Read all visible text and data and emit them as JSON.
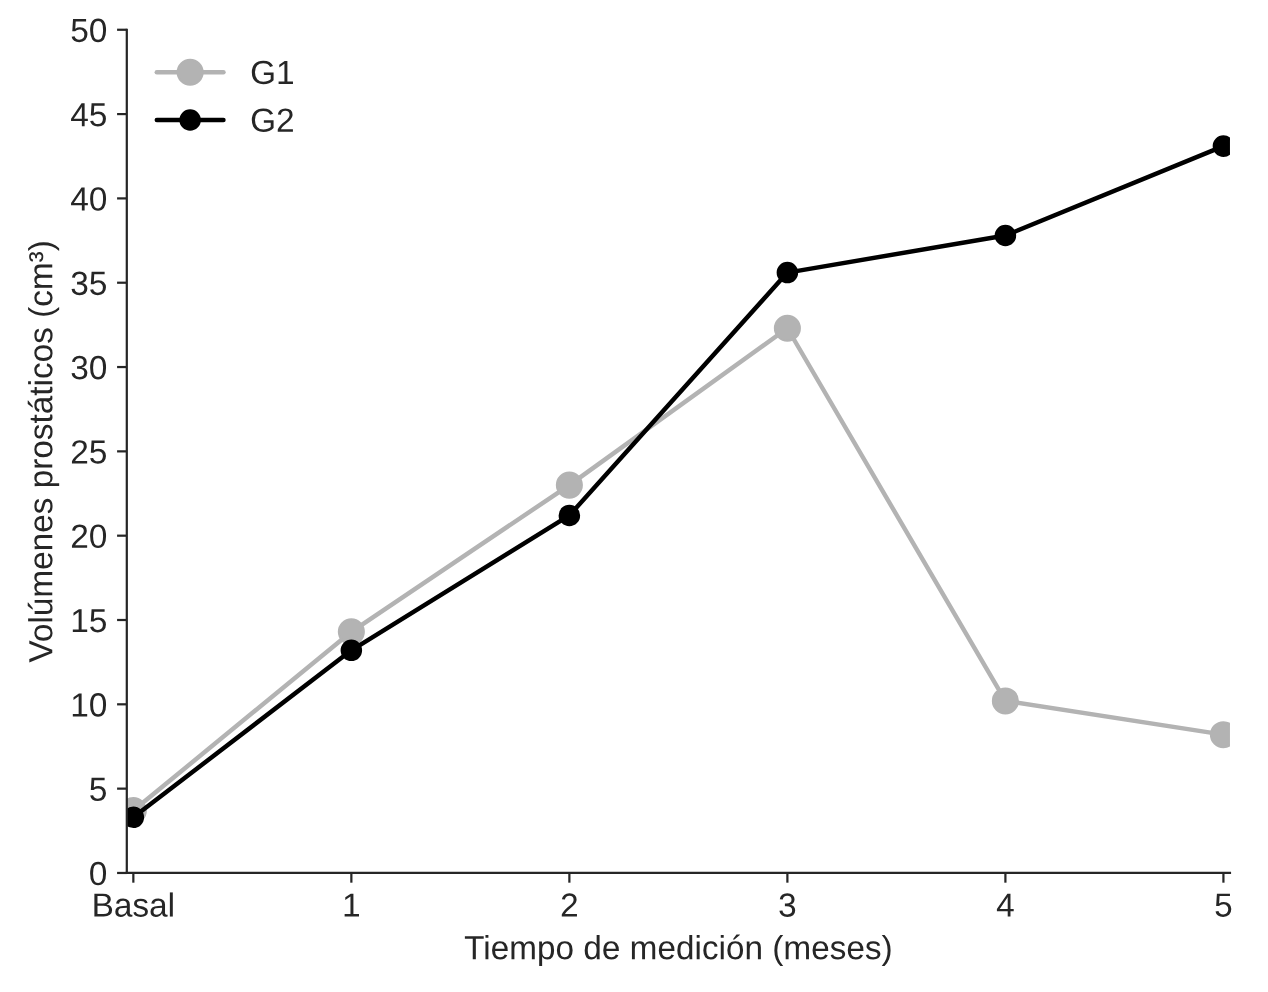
{
  "chart_data": {
    "type": "line",
    "xlabel": "Tiempo de medición (meses)",
    "ylabel": "Volúmenes prostáticos (cm³)",
    "categories": [
      "Basal",
      "1",
      "2",
      "3",
      "4",
      "5"
    ],
    "series": [
      {
        "name": "G1",
        "color": "#b3b3b3",
        "values": [
          3.7,
          14.3,
          23.0,
          32.3,
          10.2,
          8.2
        ]
      },
      {
        "name": "G2",
        "color": "#000000",
        "values": [
          3.3,
          13.2,
          21.2,
          35.6,
          37.8,
          43.1
        ]
      }
    ],
    "ylim": [
      0,
      50
    ],
    "yticks": [
      0,
      5,
      10,
      15,
      20,
      25,
      30,
      35,
      40,
      45,
      50
    ],
    "marker": "circle",
    "line_style": "solid",
    "legend": "top left",
    "grid": false
  }
}
